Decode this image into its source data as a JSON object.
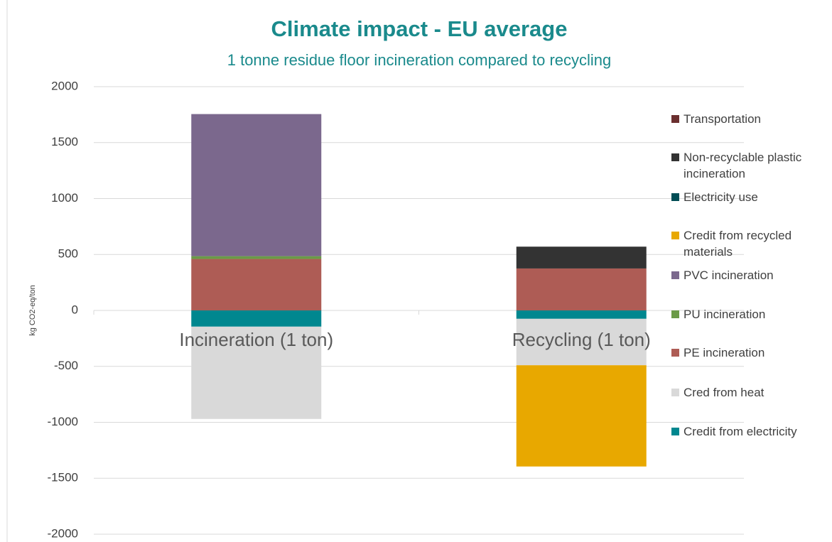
{
  "chart_data": {
    "type": "stacked_bar",
    "title": "Climate impact - EU average",
    "subtitle": "1 tonne residue floor incineration compared to recycling",
    "y_label": "kg CO2-eq/ton",
    "categories": [
      "Incineration (1 ton)",
      "Recycling (1 ton)"
    ],
    "series": [
      {
        "name": "Credit from electricity",
        "color": "#00878f",
        "values": [
          -145,
          -75
        ]
      },
      {
        "name": "Cred from heat",
        "color": "#d9d9d9",
        "values": [
          -825,
          -415
        ]
      },
      {
        "name": "PE incineration",
        "color": "#ae5c55",
        "values": [
          460,
          375
        ]
      },
      {
        "name": "PU incineration",
        "color": "#6b9a48",
        "values": [
          25,
          0
        ]
      },
      {
        "name": "PVC incineration",
        "color": "#7b688d",
        "values": [
          1270,
          0
        ]
      },
      {
        "name": "Credit from recycled materials",
        "color": "#e8a800",
        "values": [
          0,
          -905
        ]
      },
      {
        "name": "Electricity use",
        "color": "#004d55",
        "values": [
          0,
          0
        ]
      },
      {
        "name": "Non-recyclable plastic incineration",
        "color": "#333333",
        "values": [
          0,
          195
        ]
      },
      {
        "name": "Transportation",
        "color": "#6b2f2f",
        "values": [
          0,
          0
        ]
      }
    ],
    "ylim": [
      -2000,
      2000
    ],
    "yticks": [
      -2000,
      -1500,
      -1000,
      -500,
      0,
      500,
      1000,
      1500,
      2000
    ],
    "grid": true
  }
}
